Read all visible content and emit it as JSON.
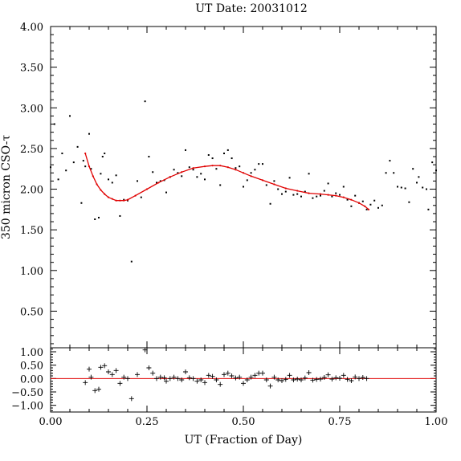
{
  "chart_data": {
    "type": "scatter",
    "title": "UT Date: 20031012",
    "xlabel": "UT (Fraction of Day)",
    "ylabel": "350 micron CSO-τ",
    "xlim": [
      0,
      1
    ],
    "xticks": [
      0,
      0.25,
      0.5,
      0.75,
      1
    ],
    "xtick_labels": [
      "0.00",
      "0.25",
      "0.50",
      "0.75",
      "1.00"
    ],
    "colors": {
      "points": "#000000",
      "fit": "#e00000",
      "frame": "#000000"
    },
    "main_panel": {
      "ylim": [
        0.05,
        4.0
      ],
      "yticks": [
        0.5,
        1.0,
        1.5,
        2.0,
        2.5,
        3.0,
        3.5,
        4.0
      ],
      "ytick_labels": [
        "0.50",
        "1.00",
        "1.50",
        "2.00",
        "2.50",
        "3.00",
        "3.50",
        "4.00"
      ],
      "points": [
        [
          0.0,
          2.27
        ],
        [
          0.01,
          2.8
        ],
        [
          0.02,
          2.12
        ],
        [
          0.03,
          2.44
        ],
        [
          0.04,
          2.23
        ],
        [
          0.05,
          2.9
        ],
        [
          0.06,
          2.33
        ],
        [
          0.07,
          2.52
        ],
        [
          0.08,
          1.83
        ],
        [
          0.085,
          2.35
        ],
        [
          0.09,
          2.28
        ],
        [
          0.1,
          2.68
        ],
        [
          0.105,
          2.25
        ],
        [
          0.115,
          1.63
        ],
        [
          0.125,
          1.65
        ],
        [
          0.13,
          2.19
        ],
        [
          0.135,
          2.4
        ],
        [
          0.14,
          2.44
        ],
        [
          0.15,
          2.12
        ],
        [
          0.16,
          2.08
        ],
        [
          0.17,
          2.17
        ],
        [
          0.18,
          1.67
        ],
        [
          0.19,
          1.87
        ],
        [
          0.2,
          1.86
        ],
        [
          0.21,
          1.11
        ],
        [
          0.225,
          2.1
        ],
        [
          0.235,
          1.9
        ],
        [
          0.245,
          3.08
        ],
        [
          0.255,
          2.4
        ],
        [
          0.265,
          2.21
        ],
        [
          0.275,
          2.08
        ],
        [
          0.285,
          2.1
        ],
        [
          0.295,
          2.11
        ],
        [
          0.3,
          1.96
        ],
        [
          0.31,
          2.15
        ],
        [
          0.32,
          2.24
        ],
        [
          0.33,
          2.2
        ],
        [
          0.34,
          2.16
        ],
        [
          0.35,
          2.48
        ],
        [
          0.36,
          2.27
        ],
        [
          0.37,
          2.24
        ],
        [
          0.38,
          2.15
        ],
        [
          0.39,
          2.19
        ],
        [
          0.4,
          2.12
        ],
        [
          0.41,
          2.42
        ],
        [
          0.42,
          2.38
        ],
        [
          0.43,
          2.25
        ],
        [
          0.44,
          2.05
        ],
        [
          0.45,
          2.44
        ],
        [
          0.46,
          2.48
        ],
        [
          0.47,
          2.38
        ],
        [
          0.48,
          2.26
        ],
        [
          0.49,
          2.28
        ],
        [
          0.5,
          2.03
        ],
        [
          0.51,
          2.11
        ],
        [
          0.52,
          2.2
        ],
        [
          0.53,
          2.24
        ],
        [
          0.54,
          2.31
        ],
        [
          0.55,
          2.31
        ],
        [
          0.56,
          2.05
        ],
        [
          0.57,
          1.82
        ],
        [
          0.58,
          2.1
        ],
        [
          0.59,
          2.0
        ],
        [
          0.6,
          1.94
        ],
        [
          0.61,
          1.97
        ],
        [
          0.62,
          2.14
        ],
        [
          0.63,
          1.93
        ],
        [
          0.64,
          1.94
        ],
        [
          0.65,
          1.91
        ],
        [
          0.66,
          1.97
        ],
        [
          0.67,
          2.19
        ],
        [
          0.68,
          1.89
        ],
        [
          0.69,
          1.91
        ],
        [
          0.7,
          1.92
        ],
        [
          0.71,
          1.98
        ],
        [
          0.72,
          2.07
        ],
        [
          0.73,
          1.91
        ],
        [
          0.74,
          1.95
        ],
        [
          0.75,
          1.93
        ],
        [
          0.76,
          2.03
        ],
        [
          0.77,
          1.87
        ],
        [
          0.78,
          1.79
        ],
        [
          0.79,
          1.92
        ],
        [
          0.8,
          1.83
        ],
        [
          0.81,
          1.85
        ],
        [
          0.82,
          1.75
        ],
        [
          0.83,
          1.81
        ],
        [
          0.84,
          1.86
        ],
        [
          0.85,
          1.77
        ],
        [
          0.86,
          1.8
        ],
        [
          0.87,
          2.2
        ],
        [
          0.88,
          2.35
        ],
        [
          0.89,
          2.2
        ],
        [
          0.9,
          2.03
        ],
        [
          0.91,
          2.02
        ],
        [
          0.92,
          2.01
        ],
        [
          0.93,
          1.84
        ],
        [
          0.94,
          2.25
        ],
        [
          0.95,
          2.08
        ],
        [
          0.955,
          2.15
        ],
        [
          0.965,
          2.02
        ],
        [
          0.975,
          2.0
        ],
        [
          0.98,
          1.75
        ],
        [
          0.99,
          2.33
        ],
        [
          1.0,
          2.23
        ]
      ],
      "fit_curve": [
        [
          0.09,
          2.44
        ],
        [
          0.1,
          2.28
        ],
        [
          0.11,
          2.16
        ],
        [
          0.12,
          2.06
        ],
        [
          0.13,
          1.99
        ],
        [
          0.14,
          1.94
        ],
        [
          0.15,
          1.9
        ],
        [
          0.16,
          1.88
        ],
        [
          0.17,
          1.86
        ],
        [
          0.18,
          1.86
        ],
        [
          0.19,
          1.86
        ],
        [
          0.2,
          1.87
        ],
        [
          0.22,
          1.92
        ],
        [
          0.25,
          2.0
        ],
        [
          0.28,
          2.08
        ],
        [
          0.31,
          2.15
        ],
        [
          0.34,
          2.21
        ],
        [
          0.37,
          2.26
        ],
        [
          0.4,
          2.28
        ],
        [
          0.42,
          2.29
        ],
        [
          0.44,
          2.29
        ],
        [
          0.46,
          2.27
        ],
        [
          0.48,
          2.24
        ],
        [
          0.5,
          2.2
        ],
        [
          0.52,
          2.16
        ],
        [
          0.55,
          2.11
        ],
        [
          0.58,
          2.06
        ],
        [
          0.61,
          2.01
        ],
        [
          0.64,
          1.98
        ],
        [
          0.67,
          1.95
        ],
        [
          0.7,
          1.94
        ],
        [
          0.72,
          1.93
        ],
        [
          0.74,
          1.92
        ],
        [
          0.76,
          1.9
        ],
        [
          0.78,
          1.87
        ],
        [
          0.8,
          1.83
        ],
        [
          0.815,
          1.79
        ],
        [
          0.825,
          1.75
        ]
      ]
    },
    "residual_panel": {
      "ylim": [
        -1.25,
        1.15
      ],
      "yticks": [
        -1.0,
        -0.5,
        0.0,
        0.5,
        1.0
      ],
      "ytick_labels": [
        "−1.00",
        "−0.50",
        "0.00",
        "0.50",
        "1.00"
      ],
      "zero_line": 0,
      "points": [
        [
          0.09,
          -0.15
        ],
        [
          0.1,
          0.35
        ],
        [
          0.105,
          0.05
        ],
        [
          0.115,
          -0.45
        ],
        [
          0.125,
          -0.4
        ],
        [
          0.13,
          0.42
        ],
        [
          0.14,
          0.48
        ],
        [
          0.15,
          0.25
        ],
        [
          0.16,
          0.15
        ],
        [
          0.17,
          0.3
        ],
        [
          0.18,
          -0.18
        ],
        [
          0.19,
          0.05
        ],
        [
          0.2,
          0.0
        ],
        [
          0.21,
          -0.75
        ],
        [
          0.225,
          0.15
        ],
        [
          0.245,
          1.07
        ],
        [
          0.255,
          0.4
        ],
        [
          0.265,
          0.2
        ],
        [
          0.275,
          0.0
        ],
        [
          0.285,
          0.05
        ],
        [
          0.295,
          0.03
        ],
        [
          0.3,
          -0.1
        ],
        [
          0.31,
          0.0
        ],
        [
          0.32,
          0.05
        ],
        [
          0.33,
          0.0
        ],
        [
          0.34,
          -0.05
        ],
        [
          0.35,
          0.25
        ],
        [
          0.36,
          0.03
        ],
        [
          0.37,
          0.0
        ],
        [
          0.38,
          -0.1
        ],
        [
          0.39,
          -0.05
        ],
        [
          0.4,
          -0.15
        ],
        [
          0.41,
          0.12
        ],
        [
          0.42,
          0.08
        ],
        [
          0.43,
          -0.05
        ],
        [
          0.44,
          -0.22
        ],
        [
          0.45,
          0.15
        ],
        [
          0.46,
          0.2
        ],
        [
          0.47,
          0.1
        ],
        [
          0.48,
          0.02
        ],
        [
          0.49,
          0.05
        ],
        [
          0.5,
          -0.18
        ],
        [
          0.51,
          -0.05
        ],
        [
          0.52,
          0.05
        ],
        [
          0.53,
          0.12
        ],
        [
          0.54,
          0.2
        ],
        [
          0.55,
          0.2
        ],
        [
          0.56,
          -0.05
        ],
        [
          0.57,
          -0.28
        ],
        [
          0.58,
          0.05
        ],
        [
          0.59,
          -0.05
        ],
        [
          0.6,
          -0.08
        ],
        [
          0.61,
          -0.03
        ],
        [
          0.62,
          0.12
        ],
        [
          0.63,
          -0.05
        ],
        [
          0.64,
          -0.02
        ],
        [
          0.65,
          -0.05
        ],
        [
          0.66,
          0.02
        ],
        [
          0.67,
          0.22
        ],
        [
          0.68,
          -0.06
        ],
        [
          0.69,
          -0.03
        ],
        [
          0.7,
          -0.02
        ],
        [
          0.71,
          0.04
        ],
        [
          0.72,
          0.14
        ],
        [
          0.73,
          -0.02
        ],
        [
          0.74,
          0.03
        ],
        [
          0.75,
          0.01
        ],
        [
          0.76,
          0.12
        ],
        [
          0.77,
          -0.03
        ],
        [
          0.78,
          -0.08
        ],
        [
          0.79,
          0.06
        ],
        [
          0.8,
          0.0
        ],
        [
          0.81,
          0.04
        ],
        [
          0.82,
          0.0
        ]
      ]
    }
  }
}
